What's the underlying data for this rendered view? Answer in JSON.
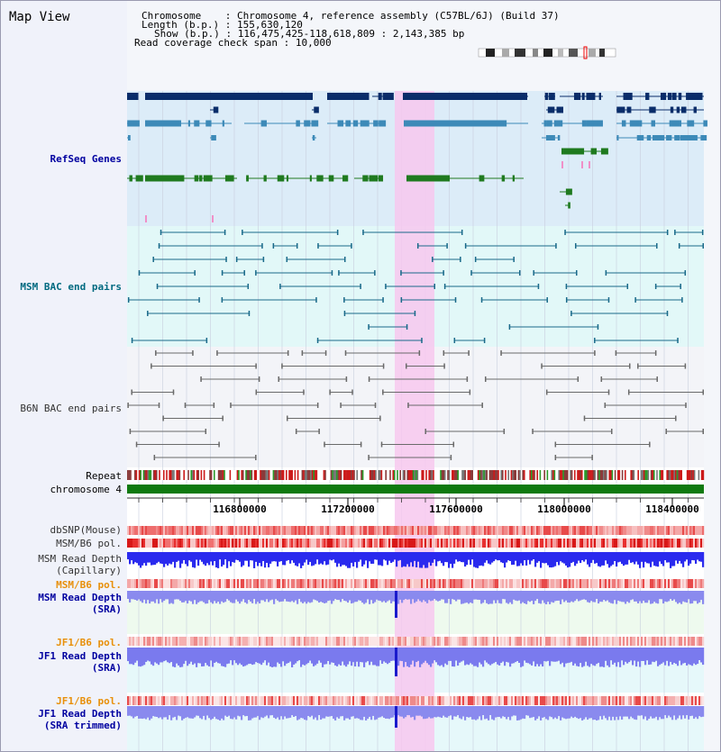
{
  "app_title": "Map View",
  "header": {
    "chromosome_label": "Chromosome",
    "chromosome_value": "Chromosome 4, reference assembly (C57BL/6J) (Build 37)",
    "length_label": "Length (b.p.)",
    "length_value": "155,630,120",
    "show_label": "Show (b.p.)",
    "show_value": "116,475,425-118,618,809 : 2,143,385 bp",
    "coverage_label": "Read coverage check span",
    "coverage_value": "10,000"
  },
  "tracks": {
    "refseq": "RefSeq Genes",
    "msm_bac": "MSM BAC end pairs",
    "b6n_bac": "B6N BAC end pairs",
    "repeat": "Repeat",
    "chromosome": "chromosome 4",
    "dbsnp": "dbSNP(Mouse)",
    "msm_b6_pol": "MSM/B6 pol.",
    "msm_depth_cap_1": "MSM Read Depth",
    "msm_depth_cap_2": "(Capillary)",
    "msm_b6_pol_sra": "MSM/B6 pol.",
    "msm_depth_sra_1": "MSM Read Depth",
    "msm_depth_sra_2": "(SRA)",
    "jf1_b6_pol": "JF1/B6 pol.",
    "jf1_depth_1": "JF1 Read Depth",
    "jf1_depth_2": "(SRA)",
    "jf1_b6_pol_trim": "JF1/B6 pol.",
    "jf1_depth_trim_1": "JF1 Read Depth",
    "jf1_depth_trim_2": "(SRA trimmed)"
  },
  "ruler": {
    "ticks": [
      "116800000",
      "117200000",
      "117600000",
      "118000000",
      "118400000"
    ]
  },
  "colors": {
    "refseq_bg": "#dcecf8",
    "refseq_navy": "#0a2d6a",
    "refseq_mid": "#3d8ab8",
    "refseq_green": "#1f7a1f",
    "msm_bac_bg": "#e2f8f8",
    "msm_bac_line": "#1a6a8a",
    "b6n_bg": "#f3f4f8",
    "b6n_line": "#6a6a6a",
    "highlight": "#f7c8ee",
    "chrom_bar": "#0f7a0f",
    "label_blue": "#0000a0",
    "label_teal": "#006a80",
    "label_orange": "#e8900a",
    "depth_blue": "#2a2aee",
    "depth_light": "#8a8aee"
  }
}
